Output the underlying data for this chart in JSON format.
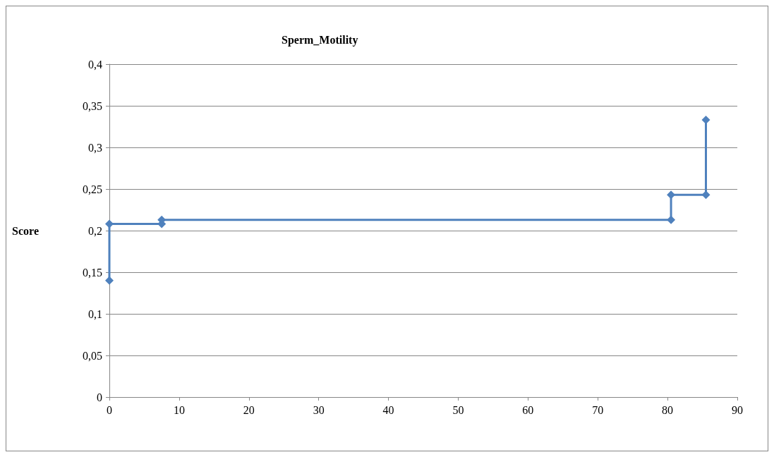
{
  "chart_data": {
    "type": "line",
    "title": "Sperm_Motility",
    "ylabel": "Score",
    "x": [
      0,
      0,
      7.5,
      7.5,
      80.5,
      80.5,
      85.5,
      85.5
    ],
    "series": [
      {
        "color": "#4f81bd",
        "values": [
          0.14,
          0.208,
          0.208,
          0.213,
          0.213,
          0.243,
          0.243,
          0.333
        ]
      }
    ],
    "xlim": [
      0,
      90
    ],
    "xticks": [
      0,
      10,
      20,
      30,
      40,
      50,
      60,
      70,
      80,
      90
    ],
    "ylim": [
      0,
      0.4
    ],
    "yticks": [
      0,
      {
        "value": 0.05,
        "label": "0,05"
      },
      {
        "value": 0.1,
        "label": "0,1"
      },
      {
        "value": 0.15,
        "label": "0,15"
      },
      {
        "value": 0.2,
        "label": "0,2"
      },
      {
        "value": 0.25,
        "label": "0,25"
      },
      {
        "value": 0.3,
        "label": "0,3"
      },
      {
        "value": 0.35,
        "label": "0,35"
      },
      {
        "value": 0.4,
        "label": "0,4"
      }
    ],
    "grid": "y",
    "marker": "diamond",
    "line_style": "solid"
  }
}
